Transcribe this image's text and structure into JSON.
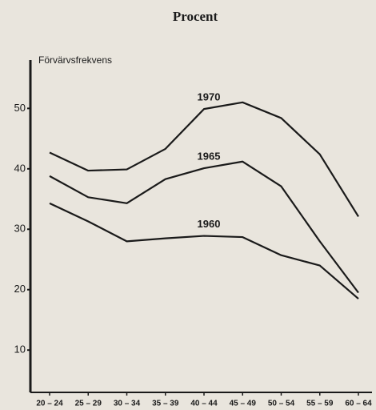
{
  "chart_data": {
    "type": "line",
    "title": "Procent",
    "ylabel": "Förvärvsfrekvens",
    "categories": [
      "20 – 24",
      "25 – 29",
      "30 – 34",
      "35 – 39",
      "40 – 44",
      "45 – 49",
      "50 – 54",
      "55 – 59",
      "60 – 64"
    ],
    "series": [
      {
        "name": "1970",
        "color": "#1a1a1a",
        "values": [
          42.7,
          39.7,
          39.9,
          43.3,
          49.9,
          51.0,
          48.4,
          42.4,
          32.1
        ]
      },
      {
        "name": "1965",
        "color": "#1a1a1a",
        "values": [
          38.8,
          35.3,
          34.3,
          38.3,
          40.1,
          41.2,
          37.1,
          28.0,
          19.5
        ]
      },
      {
        "name": "1960",
        "color": "#1a1a1a",
        "values": [
          34.3,
          31.3,
          28.0,
          28.5,
          28.9,
          28.7,
          25.7,
          24.0,
          18.5
        ]
      }
    ],
    "ylim": [
      3,
      58
    ],
    "yticks": [
      10,
      20,
      30,
      40,
      50
    ],
    "grid": false,
    "legend": "inline"
  }
}
